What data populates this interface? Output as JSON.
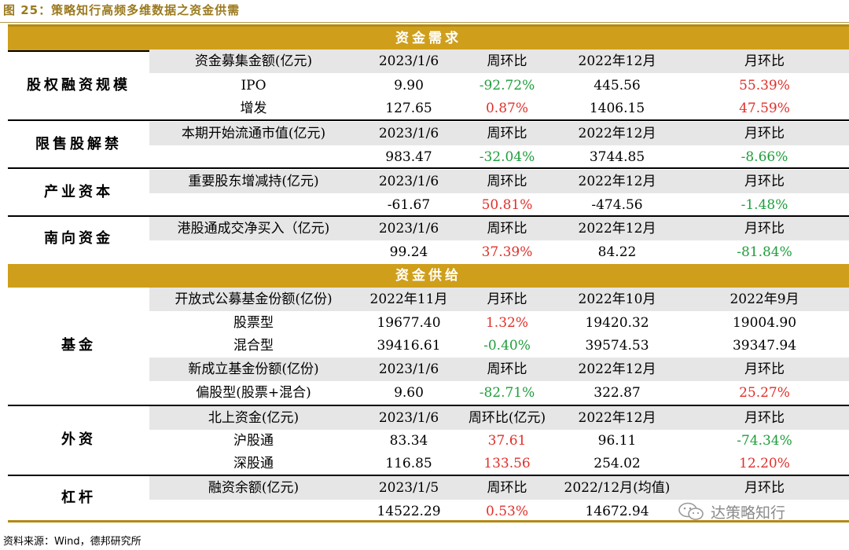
{
  "title": "图 25：策略知行高频多维数据之资金供需",
  "sections": {
    "demand": "资金需求",
    "supply": "资金供给"
  },
  "demand": {
    "equity": {
      "category": "股权融资规模",
      "header": [
        "资金募集金额(亿元)",
        "2023/1/6",
        "周环比",
        "2022年12月",
        "月环比"
      ],
      "rows": [
        [
          "IPO",
          "9.90",
          "-92.72%",
          "445.56",
          "55.39%"
        ],
        [
          "增发",
          "127.65",
          "0.87%",
          "1406.15",
          "47.59%"
        ]
      ]
    },
    "lockup": {
      "category": "限售股解禁",
      "header": [
        "本期开始流通市值(亿元)",
        "2023/1/6",
        "周环比",
        "2022年12月",
        "月环比"
      ],
      "row": [
        "",
        "983.47",
        "-32.04%",
        "3744.85",
        "-8.66%"
      ]
    },
    "industrial": {
      "category": "产业资本",
      "header": [
        "重要股东增减持(亿元)",
        "2023/1/6",
        "周环比",
        "2022年12月",
        "月环比"
      ],
      "row": [
        "",
        "-61.67",
        "50.81%",
        "-474.56",
        "-1.48%"
      ]
    },
    "southbound": {
      "category": "南向资金",
      "header": [
        "港股通成交净买入（亿元)",
        "2023/1/6",
        "周环比",
        "2022年12月",
        "月环比"
      ],
      "row": [
        "",
        "99.24",
        "37.39%",
        "84.22",
        "-81.84%"
      ]
    }
  },
  "supply": {
    "fund": {
      "category": "基金",
      "header1": [
        "开放式公募基金份额(亿份)",
        "2022年11月",
        "月环比",
        "2022年10月",
        "2022年9月"
      ],
      "rows1": [
        [
          "股票型",
          "19677.40",
          "1.32%",
          "19420.32",
          "19004.90"
        ],
        [
          "混合型",
          "39416.61",
          "-0.40%",
          "39574.53",
          "39347.94"
        ]
      ],
      "header2": [
        "新成立基金份额(亿份)",
        "2023/1/6",
        "周环比",
        "2022年12月",
        "月环比"
      ],
      "row2": [
        "偏股型(股票+混合)",
        "9.60",
        "-82.71%",
        "322.87",
        "25.27%"
      ]
    },
    "foreign": {
      "category": "外资",
      "header": [
        "北上资金(亿元)",
        "2023/1/6",
        "周环比(亿元)",
        "2022年12月",
        "月环比"
      ],
      "rows": [
        [
          "沪股通",
          "83.34",
          "37.61",
          "96.11",
          "-74.34%"
        ],
        [
          "深股通",
          "116.85",
          "133.56",
          "254.02",
          "12.20%"
        ]
      ]
    },
    "leverage": {
      "category": "杠杆",
      "header": [
        "融资余额(亿元)",
        "2023/1/5",
        "周环比",
        "2022/12月(均值)",
        "月环比"
      ],
      "row": [
        "",
        "14522.29",
        "0.53%",
        "14672.94",
        ""
      ]
    }
  },
  "watermark": "达策略知行",
  "source": "资料来源：Wind，德邦研究所",
  "colors": {
    "red": "#e0302a",
    "green": "#1f9e3c",
    "gold": "#cf9f1b",
    "header_gray": "#e6e6e6"
  }
}
